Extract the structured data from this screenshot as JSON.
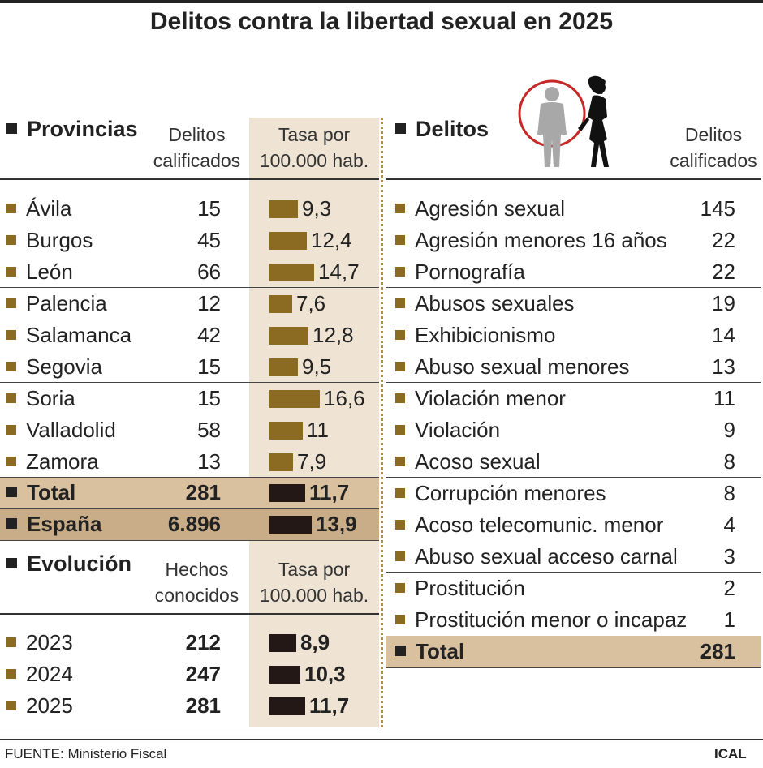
{
  "title": "Delitos contra la libertad sexual en 2025",
  "provincias": {
    "header": "Provincias",
    "col1": [
      "Delitos",
      "calificados"
    ],
    "col2": [
      "Tasa por",
      "100.000 hab."
    ],
    "rows": [
      {
        "name": "Ávila",
        "delitos": "15",
        "tasa": 9.3,
        "tasa_label": "9,3"
      },
      {
        "name": "Burgos",
        "delitos": "45",
        "tasa": 12.4,
        "tasa_label": "12,4"
      },
      {
        "name": "León",
        "delitos": "66",
        "tasa": 14.7,
        "tasa_label": "14,7"
      },
      {
        "name": "Palencia",
        "delitos": "12",
        "tasa": 7.6,
        "tasa_label": "7,6"
      },
      {
        "name": "Salamanca",
        "delitos": "42",
        "tasa": 12.8,
        "tasa_label": "12,8"
      },
      {
        "name": "Segovia",
        "delitos": "15",
        "tasa": 9.5,
        "tasa_label": "9,5"
      },
      {
        "name": "Soria",
        "delitos": "15",
        "tasa": 16.6,
        "tasa_label": "16,6"
      },
      {
        "name": "Valladolid",
        "delitos": "58",
        "tasa": 11,
        "tasa_label": "11"
      },
      {
        "name": "Zamora",
        "delitos": "13",
        "tasa": 7.9,
        "tasa_label": "7,9"
      }
    ],
    "total": {
      "name": "Total",
      "delitos": "281",
      "tasa": 11.7,
      "tasa_label": "11,7"
    },
    "espana": {
      "name": "España",
      "delitos": "6.896",
      "tasa": 13.9,
      "tasa_label": "13,9"
    }
  },
  "evolucion": {
    "header": "Evolución",
    "col1": [
      "Hechos",
      "conocidos"
    ],
    "col2": [
      "Tasa por",
      "100.000 hab."
    ],
    "rows": [
      {
        "year": "2023",
        "hechos": "212",
        "tasa": 8.9,
        "tasa_label": "8,9"
      },
      {
        "year": "2024",
        "hechos": "247",
        "tasa": 10.3,
        "tasa_label": "10,3"
      },
      {
        "year": "2025",
        "hechos": "281",
        "tasa": 11.7,
        "tasa_label": "11,7"
      }
    ]
  },
  "delitos": {
    "header": "Delitos",
    "col": [
      "Delitos",
      "calificados"
    ],
    "rows": [
      {
        "name": "Agresión sexual",
        "value": "145"
      },
      {
        "name": "Agresión menores 16 años",
        "value": "22"
      },
      {
        "name": "Pornografía",
        "value": "22"
      },
      {
        "name": "Abusos sexuales",
        "value": "19"
      },
      {
        "name": "Exhibicionismo",
        "value": "14"
      },
      {
        "name": "Abuso sexual menores",
        "value": "13"
      },
      {
        "name": "Violación menor",
        "value": "11"
      },
      {
        "name": "Violación",
        "value": "9"
      },
      {
        "name": "Acoso sexual",
        "value": "8"
      },
      {
        "name": "Corrupción menores",
        "value": "8"
      },
      {
        "name": "Acoso telecomunic. menor",
        "value": "4"
      },
      {
        "name": "Abuso sexual acceso carnal",
        "value": "3"
      },
      {
        "name": "Prostitución",
        "value": "2"
      },
      {
        "name": "Prostitución menor o incapaz",
        "value": "1"
      }
    ],
    "total": {
      "name": "Total",
      "value": "281"
    }
  },
  "source": "FUENTE: Ministerio Fiscal",
  "brand": "ICAL",
  "colors": {
    "bar_gold": "#8b6a22",
    "bar_dark": "#231815",
    "band": "#efe3d4",
    "total_bg": "#d9c09e",
    "espana_bg": "#c8ad88"
  },
  "chart_data": [
    {
      "type": "bar",
      "categories": [
        "Ávila",
        "Burgos",
        "León",
        "Palencia",
        "Salamanca",
        "Segovia",
        "Soria",
        "Valladolid",
        "Zamora",
        "Total",
        "España"
      ],
      "series": [
        {
          "name": "Tasa por 100.000 hab.",
          "values": [
            9.3,
            12.4,
            14.7,
            7.6,
            12.8,
            9.5,
            16.6,
            11,
            7.9,
            11.7,
            13.9
          ]
        }
      ]
    },
    {
      "type": "bar",
      "categories": [
        "2023",
        "2024",
        "2025"
      ],
      "series": [
        {
          "name": "Tasa por 100.000 hab.",
          "values": [
            8.9,
            10.3,
            11.7
          ]
        }
      ]
    }
  ]
}
